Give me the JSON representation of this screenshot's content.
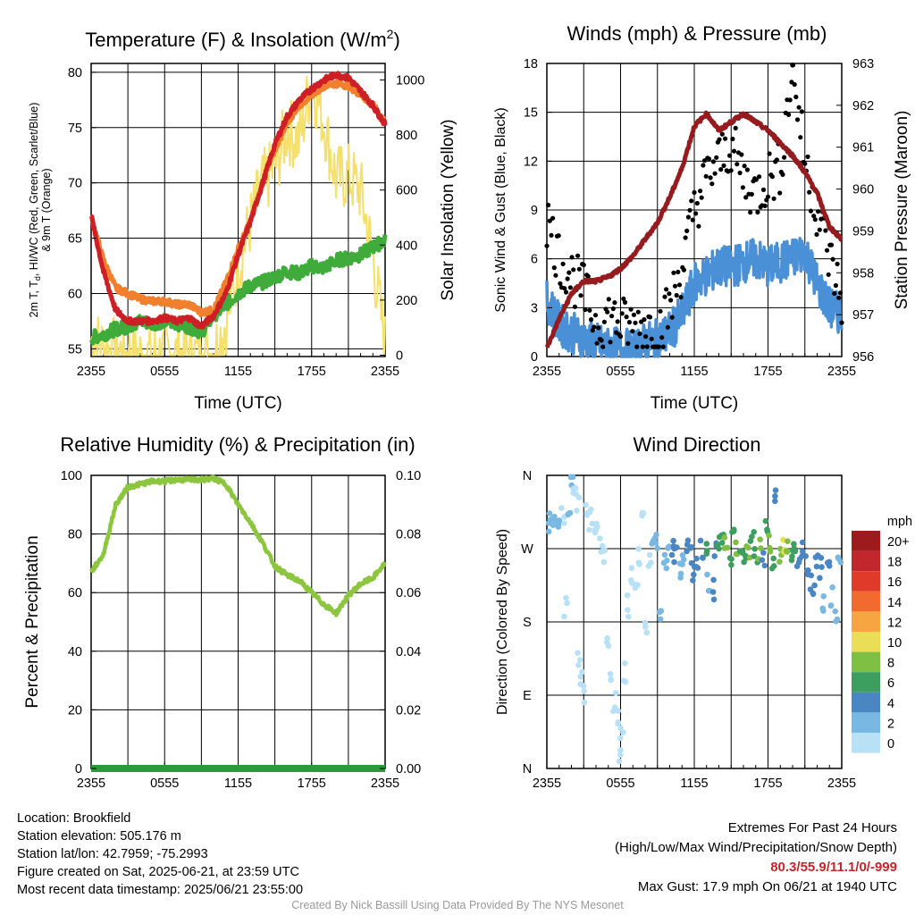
{
  "chart_data": [
    {
      "id": "temp",
      "type": "line",
      "title": "Temperature (F) & Insolation (W/m",
      "title_sup": "2",
      "title_close": ")",
      "ylabel_lines": [
        "2m T, T",
        "d",
        ", HI/WC (Red, Green, Scarlet/Blue)",
        "& 9m T (Orange)"
      ],
      "y2label": "Solar Insolation (Yellow)",
      "xlabel": "Time (UTC)",
      "x_ticks": [
        "2355",
        "0555",
        "1155",
        "1755",
        "2355"
      ],
      "ylim": [
        54.3,
        80.8
      ],
      "y_ticks": [
        "55",
        "60",
        "65",
        "70",
        "75",
        "80"
      ],
      "y2lim": [
        -5,
        1060
      ],
      "y2_ticks": [
        "0",
        "200",
        "400",
        "600",
        "800",
        "1000"
      ],
      "x_hours": [
        0,
        1,
        2,
        3,
        4,
        5,
        6,
        7,
        8,
        9,
        10,
        11,
        12,
        13,
        14,
        15,
        16,
        17,
        18,
        19,
        20,
        21,
        22,
        23,
        24
      ],
      "series": [
        {
          "color": "#f07f2e",
          "values": [
            67,
            63,
            60.5,
            60,
            59.5,
            59.3,
            59.3,
            59,
            59,
            58.3,
            58.5,
            61,
            64,
            66.5,
            70,
            73,
            75.5,
            77,
            78,
            78.8,
            79,
            78.8,
            78,
            77,
            75.5
          ]
        },
        {
          "color": "#ce1f26",
          "values": [
            67,
            62,
            58.5,
            57.5,
            57.5,
            57.5,
            57.8,
            57.5,
            57.8,
            57,
            58,
            60,
            63.5,
            66.5,
            70,
            73.5,
            76,
            77.5,
            78.5,
            79.3,
            79.8,
            79.5,
            78.3,
            77,
            75.3
          ]
        },
        {
          "color": "#3fab3a",
          "values": [
            56,
            56.3,
            56.8,
            57,
            57.5,
            57.3,
            57.5,
            57.3,
            57,
            56.5,
            58,
            59,
            60,
            60.7,
            61,
            61.5,
            62,
            61.8,
            62.5,
            62.3,
            63,
            63.2,
            63.5,
            64.2,
            64.8
          ]
        },
        {
          "color": "#f5e06b",
          "values": [
            55,
            30,
            10,
            2,
            0,
            0,
            0,
            0,
            0,
            0,
            10,
            120,
            320,
            480,
            620,
            680,
            820,
            780,
            1000,
            850,
            640,
            650,
            600,
            350,
            40
          ]
        }
      ]
    },
    {
      "id": "wind",
      "type": "line",
      "title": "Winds (mph) & Pressure (mb)",
      "ylabel": "Sonic Wind & Gust (Blue, Black)",
      "y2label": "Station Pressure (Maroon)",
      "xlabel": "Time (UTC)",
      "x_ticks": [
        "2355",
        "0555",
        "1155",
        "1755",
        "2355"
      ],
      "ylim": [
        0,
        18
      ],
      "y_ticks": [
        "0",
        "3",
        "6",
        "9",
        "12",
        "15",
        "18"
      ],
      "y2lim": [
        956,
        963
      ],
      "y2_ticks": [
        "956",
        "957",
        "958",
        "959",
        "960",
        "961",
        "962",
        "963"
      ],
      "x_hours": [
        0,
        1,
        2,
        3,
        4,
        5,
        6,
        7,
        8,
        9,
        10,
        11,
        12,
        13,
        14,
        15,
        16,
        17,
        18,
        19,
        20,
        21,
        22,
        23,
        24
      ],
      "series": [
        {
          "color": "#4a90d6",
          "values": [
            3.5,
            2,
            1.5,
            1,
            0.8,
            0.5,
            0.5,
            0.3,
            0.8,
            1,
            1.5,
            2.5,
            4.5,
            5,
            5.5,
            5.5,
            5.8,
            6,
            5.5,
            5.8,
            6,
            6.5,
            4.5,
            3,
            2.5
          ]
        },
        {
          "color": "#951b1e",
          "values": [
            956.2,
            956.9,
            957.5,
            957.8,
            957.8,
            957.9,
            958.1,
            958.4,
            958.8,
            959.2,
            959.8,
            960.5,
            961.5,
            961.8,
            961.4,
            961.6,
            961.8,
            961.6,
            961.4,
            961.1,
            960.8,
            960.4,
            959.9,
            959.1,
            958.8
          ]
        }
      ],
      "gusts": [
        8.5,
        6,
        5,
        4,
        2,
        2.5,
        2,
        1.8,
        2,
        1.5,
        3,
        5.5,
        9,
        11,
        12,
        13,
        11,
        10,
        11,
        11.5,
        17.9,
        12,
        9,
        6,
        3.5
      ]
    },
    {
      "id": "rh",
      "type": "line",
      "title": "Relative Humidity (%) & Precipitation (in)",
      "ylabel": "Percent & Precipitation",
      "x_ticks": [
        "2355",
        "0555",
        "1155",
        "1755",
        "2355"
      ],
      "ylim": [
        0,
        100
      ],
      "y_ticks": [
        "0",
        "20",
        "40",
        "60",
        "80",
        "100"
      ],
      "y2lim": [
        0,
        0.1
      ],
      "y2_ticks": [
        "0.00",
        "0.02",
        "0.04",
        "0.06",
        "0.08",
        "0.10"
      ],
      "x_hours": [
        0,
        1,
        2,
        3,
        4,
        5,
        6,
        7,
        8,
        9,
        10,
        11,
        12,
        13,
        14,
        15,
        16,
        17,
        18,
        19,
        20,
        21,
        22,
        23,
        24
      ],
      "series": [
        {
          "color": "#8cc63f",
          "values": [
            67,
            73,
            90,
            96,
            97,
            98,
            98,
            98.5,
            98.5,
            98.5,
            99,
            97,
            90,
            84,
            77,
            69,
            66,
            64,
            60,
            56,
            53,
            59,
            63,
            65,
            70
          ]
        },
        {
          "color": "#2a9a3a",
          "values": [
            0,
            0,
            0,
            0,
            0,
            0,
            0,
            0,
            0,
            0,
            0,
            0,
            0,
            0,
            0,
            0,
            0,
            0,
            0,
            0,
            0,
            0,
            0,
            0,
            0
          ]
        }
      ]
    },
    {
      "id": "dir",
      "type": "scatter",
      "title": "Wind Direction",
      "ylabel": "Direction (Colored By Speed)",
      "x_ticks": [
        "2355",
        "0555",
        "1155",
        "1755",
        "2355"
      ],
      "y_ticks": [
        "N",
        "E",
        "S",
        "W",
        "N"
      ],
      "ylim": [
        0,
        360
      ],
      "legend_unit": "mph",
      "legend": [
        {
          "label": "20+",
          "color": "#9e1a1d"
        },
        {
          "label": "18",
          "color": "#c1272d"
        },
        {
          "label": "16",
          "color": "#e03a2a"
        },
        {
          "label": "14",
          "color": "#f26a30"
        },
        {
          "label": "12",
          "color": "#f7a541"
        },
        {
          "label": "10",
          "color": "#e9de55"
        },
        {
          "label": "8",
          "color": "#7fbf43"
        },
        {
          "label": "6",
          "color": "#3d9e60"
        },
        {
          "label": "4",
          "color": "#4a87c2"
        },
        {
          "label": "2",
          "color": "#7ab8e4"
        },
        {
          "label": "0",
          "color": "#b9e1f5"
        }
      ],
      "points": [
        [
          0.1,
          300,
          2
        ],
        [
          0.4,
          295,
          2
        ],
        [
          0.7,
          305,
          2
        ],
        [
          1.0,
          298,
          2
        ],
        [
          1.3,
          310,
          0
        ],
        [
          1.5,
          200,
          0
        ],
        [
          1.8,
          320,
          2
        ],
        [
          2.0,
          350,
          2
        ],
        [
          2.3,
          345,
          0
        ],
        [
          2.5,
          330,
          0
        ],
        [
          2.6,
          140,
          0
        ],
        [
          2.8,
          110,
          0
        ],
        [
          3.0,
          90,
          0
        ],
        [
          3.2,
          310,
          0
        ],
        [
          3.5,
          305,
          0
        ],
        [
          3.8,
          300,
          0
        ],
        [
          4.1,
          290,
          0
        ],
        [
          4.4,
          280,
          0
        ],
        [
          4.7,
          260,
          0
        ],
        [
          5.0,
          150,
          0
        ],
        [
          5.2,
          120,
          0
        ],
        [
          5.5,
          80,
          0
        ],
        [
          5.7,
          60,
          0
        ],
        [
          5.9,
          20,
          0
        ],
        [
          6.1,
          50,
          0
        ],
        [
          6.4,
          120,
          0
        ],
        [
          6.7,
          200,
          0
        ],
        [
          7.0,
          240,
          0
        ],
        [
          7.3,
          220,
          0
        ],
        [
          7.6,
          260,
          0
        ],
        [
          7.9,
          300,
          0
        ],
        [
          8.1,
          180,
          0
        ],
        [
          8.4,
          250,
          0
        ],
        [
          8.7,
          270,
          2
        ],
        [
          9.0,
          280,
          2
        ],
        [
          9.3,
          190,
          2
        ],
        [
          9.6,
          250,
          2
        ],
        [
          9.9,
          265,
          2
        ],
        [
          10.2,
          270,
          4
        ],
        [
          10.5,
          260,
          4
        ],
        [
          10.8,
          240,
          2
        ],
        [
          11.1,
          255,
          2
        ],
        [
          11.4,
          270,
          4
        ],
        [
          11.7,
          265,
          4
        ],
        [
          12.0,
          240,
          4
        ],
        [
          12.3,
          250,
          4
        ],
        [
          12.6,
          270,
          4
        ],
        [
          12.9,
          275,
          6
        ],
        [
          13.2,
          230,
          2
        ],
        [
          13.5,
          220,
          4
        ],
        [
          13.8,
          265,
          4
        ],
        [
          14.0,
          280,
          6
        ],
        [
          14.3,
          275,
          6
        ],
        [
          14.6,
          270,
          8
        ],
        [
          14.9,
          260,
          6
        ],
        [
          15.2,
          285,
          6
        ],
        [
          15.5,
          275,
          8
        ],
        [
          15.8,
          265,
          6
        ],
        [
          16.1,
          255,
          6
        ],
        [
          16.4,
          270,
          8
        ],
        [
          16.7,
          280,
          6
        ],
        [
          17.0,
          265,
          6
        ],
        [
          17.3,
          270,
          8
        ],
        [
          17.6,
          260,
          4
        ],
        [
          17.9,
          290,
          6
        ],
        [
          18.1,
          275,
          8
        ],
        [
          18.4,
          255,
          6
        ],
        [
          18.7,
          340,
          4
        ],
        [
          19.0,
          265,
          8
        ],
        [
          19.3,
          270,
          10
        ],
        [
          19.6,
          280,
          8
        ],
        [
          19.9,
          260,
          6
        ],
        [
          20.2,
          275,
          6
        ],
        [
          20.5,
          250,
          4
        ],
        [
          20.8,
          265,
          4
        ],
        [
          21.1,
          250,
          4
        ],
        [
          21.4,
          230,
          4
        ],
        [
          21.7,
          215,
          4
        ],
        [
          22.0,
          260,
          4
        ],
        [
          22.3,
          245,
          4
        ],
        [
          22.6,
          200,
          2
        ],
        [
          22.9,
          240,
          4
        ],
        [
          23.2,
          210,
          2
        ],
        [
          23.5,
          190,
          2
        ],
        [
          23.8,
          260,
          2
        ]
      ]
    }
  ],
  "info": {
    "location": "Location: Brookfield",
    "elevation": "Station elevation: 505.176 m",
    "latlon": "Station lat/lon: 42.7959; -75.2993",
    "created": "Figure created on Sat, 2025-06-21, at 23:59 UTC",
    "recent": "Most recent data timestamp: 2025/06/21 23:55:00"
  },
  "extremes": {
    "title": "Extremes For Past 24 Hours",
    "subtitle": "(High/Low/Max Wind/Precipitation/Snow Depth)",
    "values": "80.3/55.9/11.1/0/-999",
    "gust": "Max Gust: 17.9 mph On 06/21 at 1940 UTC"
  },
  "credit": "Created By Nick Bassill Using Data Provided By The NYS Mesonet"
}
